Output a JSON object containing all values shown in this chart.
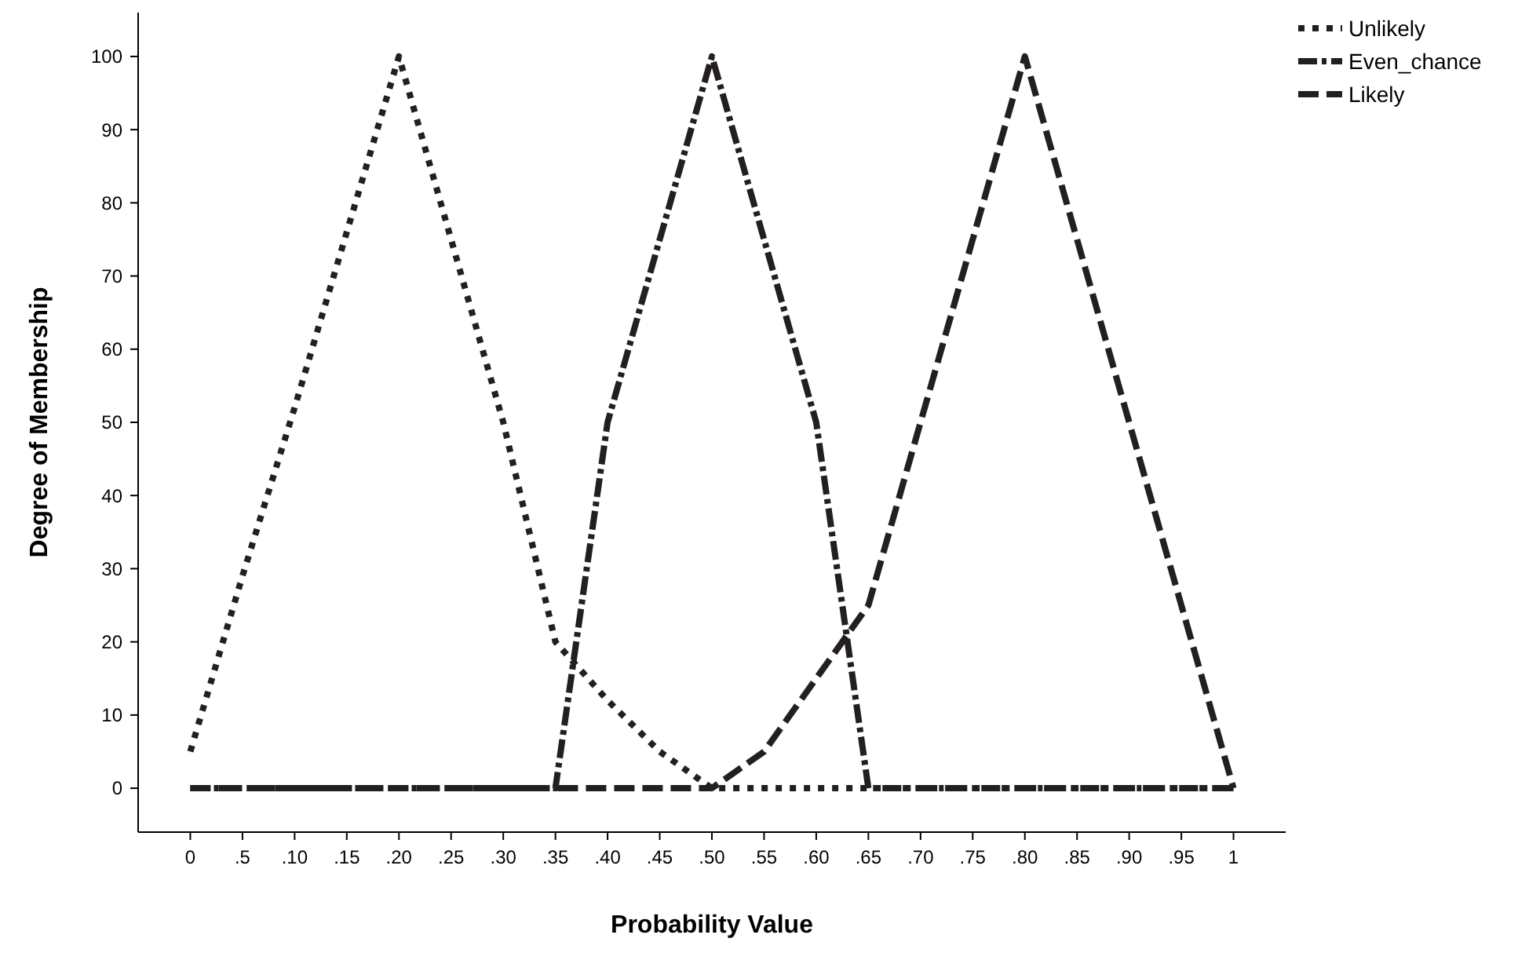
{
  "chart_data": {
    "type": "line",
    "xlabel": "Probability Value",
    "ylabel": "Degree of Membership",
    "categories": [
      "0",
      ".5",
      ".10",
      ".15",
      ".20",
      ".25",
      ".30",
      ".35",
      ".40",
      ".45",
      ".50",
      ".55",
      ".60",
      ".65",
      ".70",
      ".75",
      ".80",
      ".85",
      ".90",
      ".95",
      "1"
    ],
    "series": [
      {
        "name": "Unlikely",
        "color": "#231f20",
        "line_style": "dotted",
        "values": [
          5,
          29,
          52,
          76,
          100,
          75,
          50,
          20,
          12,
          5,
          0,
          0,
          0,
          0,
          0,
          0,
          0,
          0,
          0,
          0,
          0
        ]
      },
      {
        "name": "Even_chance",
        "color": "#231f20",
        "line_style": "dashdot",
        "values": [
          0,
          0,
          0,
          0,
          0,
          0,
          0,
          0,
          50,
          75,
          100,
          75,
          50,
          0,
          0,
          0,
          0,
          0,
          0,
          0,
          0
        ]
      },
      {
        "name": "Likely",
        "color": "#231f20",
        "line_style": "dashed",
        "values": [
          0,
          0,
          0,
          0,
          0,
          0,
          0,
          0,
          0,
          0,
          0,
          5,
          15,
          25,
          50,
          75,
          100,
          75,
          50,
          25,
          0
        ]
      }
    ],
    "ylim": [
      -6,
      106
    ],
    "yticks": [
      0,
      10,
      20,
      30,
      40,
      50,
      60,
      70,
      80,
      90,
      100
    ],
    "legend": "top right",
    "grid": false
  }
}
